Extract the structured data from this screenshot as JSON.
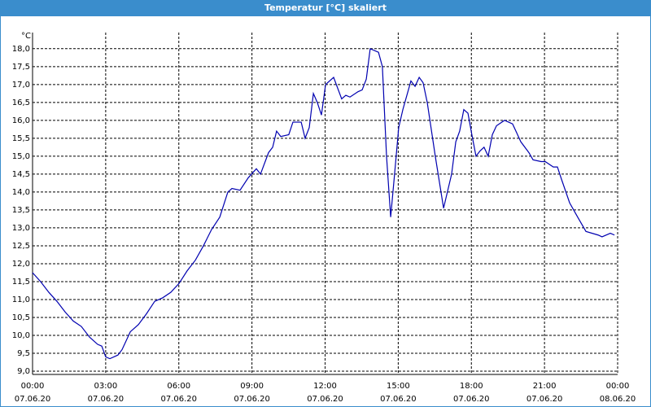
{
  "chart_data": {
    "type": "line",
    "title": "Temperatur [°C] skaliert",
    "y_unit": "°C",
    "color": "#0000b0",
    "grid": true,
    "xlim": [
      0,
      24
    ],
    "ylim": [
      8.91,
      18.45
    ],
    "xticks": [
      {
        "value": 0,
        "label": "00:00",
        "date": "07.06.20"
      },
      {
        "value": 3,
        "label": "03:00",
        "date": "07.06.20"
      },
      {
        "value": 6,
        "label": "06:00",
        "date": "07.06.20"
      },
      {
        "value": 9,
        "label": "09:00",
        "date": "07.06.20"
      },
      {
        "value": 12,
        "label": "12:00",
        "date": "07.06.20"
      },
      {
        "value": 15,
        "label": "15:00",
        "date": "07.06.20"
      },
      {
        "value": 18,
        "label": "18:00",
        "date": "07.06.20"
      },
      {
        "value": 21,
        "label": "21:00",
        "date": "07.06.20"
      },
      {
        "value": 24,
        "label": "00:00",
        "date": "08.06.20"
      }
    ],
    "yticks": [
      {
        "value": 9,
        "label": "9,0"
      },
      {
        "value": 9.5,
        "label": "9,5"
      },
      {
        "value": 10,
        "label": "10,0"
      },
      {
        "value": 10.5,
        "label": "10,5"
      },
      {
        "value": 11,
        "label": "11,0"
      },
      {
        "value": 11.5,
        "label": "11,5"
      },
      {
        "value": 12,
        "label": "12,0"
      },
      {
        "value": 12.5,
        "label": "12,5"
      },
      {
        "value": 13,
        "label": "13,0"
      },
      {
        "value": 13.5,
        "label": "13,5"
      },
      {
        "value": 14,
        "label": "14,0"
      },
      {
        "value": 14.5,
        "label": "14,5"
      },
      {
        "value": 15,
        "label": "15,0"
      },
      {
        "value": 15.5,
        "label": "15,5"
      },
      {
        "value": 16,
        "label": "16,0"
      },
      {
        "value": 16.5,
        "label": "16,5"
      },
      {
        "value": 17,
        "label": "17,0"
      },
      {
        "value": 17.5,
        "label": "17,5"
      },
      {
        "value": 18,
        "label": "18,0"
      }
    ],
    "x": [
      0,
      0.33,
      0.67,
      1.0,
      1.34,
      1.67,
      2.0,
      2.34,
      2.67,
      2.84,
      3.0,
      3.17,
      3.5,
      3.67,
      4.01,
      4.34,
      4.67,
      5.01,
      5.34,
      5.67,
      6.01,
      6.34,
      6.68,
      7.01,
      7.34,
      7.68,
      8.01,
      8.18,
      8.51,
      8.85,
      9.18,
      9.35,
      9.68,
      9.85,
      10.01,
      10.18,
      10.51,
      10.68,
      11.02,
      11.18,
      11.35,
      11.52,
      11.68,
      11.85,
      12.02,
      12.35,
      12.68,
      12.85,
      13.02,
      13.35,
      13.52,
      13.69,
      13.85,
      14.19,
      14.35,
      14.52,
      14.69,
      14.85,
      15.02,
      15.19,
      15.52,
      15.69,
      15.86,
      16.02,
      16.19,
      16.52,
      16.86,
      17.19,
      17.36,
      17.52,
      17.69,
      17.86,
      18.02,
      18.19,
      18.36,
      18.52,
      18.69,
      18.86,
      19.03,
      19.36,
      19.69,
      20.03,
      20.36,
      20.53,
      20.86,
      21.03,
      21.36,
      21.53,
      21.7,
      22.03,
      22.36,
      22.7,
      23.2,
      23.36,
      23.7,
      23.87
    ],
    "values": [
      11.75,
      11.5,
      11.2,
      10.95,
      10.65,
      10.4,
      10.25,
      9.95,
      9.75,
      9.7,
      9.4,
      9.35,
      9.45,
      9.6,
      10.1,
      10.3,
      10.6,
      10.95,
      11.05,
      11.2,
      11.45,
      11.8,
      12.1,
      12.5,
      12.95,
      13.3,
      14.0,
      14.1,
      14.05,
      14.4,
      14.65,
      14.5,
      15.1,
      15.25,
      15.7,
      15.55,
      15.6,
      15.95,
      15.95,
      15.5,
      15.8,
      16.75,
      16.5,
      16.15,
      17.0,
      17.2,
      16.6,
      16.7,
      16.65,
      16.8,
      16.85,
      17.15,
      18.0,
      17.9,
      17.5,
      15.0,
      13.3,
      14.5,
      15.8,
      16.3,
      17.1,
      16.95,
      17.2,
      17.05,
      16.5,
      15.0,
      13.55,
      14.5,
      15.4,
      15.7,
      16.3,
      16.2,
      15.6,
      15.0,
      15.15,
      15.25,
      15.0,
      15.6,
      15.85,
      16.0,
      15.9,
      15.4,
      15.1,
      14.9,
      14.85,
      14.85,
      14.7,
      14.7,
      14.35,
      13.7,
      13.3,
      12.9,
      12.8,
      12.75,
      12.85,
      12.8
    ]
  }
}
